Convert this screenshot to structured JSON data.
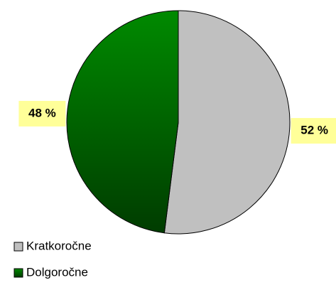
{
  "chart_data": {
    "type": "pie",
    "categories": [
      "Kratkoročne",
      "Dolgoročne"
    ],
    "values": [
      52,
      48
    ],
    "value_labels": [
      "52 %",
      "48 %"
    ],
    "colors": [
      "#c0c0c0",
      "#007000"
    ],
    "legend": "bottom-left"
  }
}
